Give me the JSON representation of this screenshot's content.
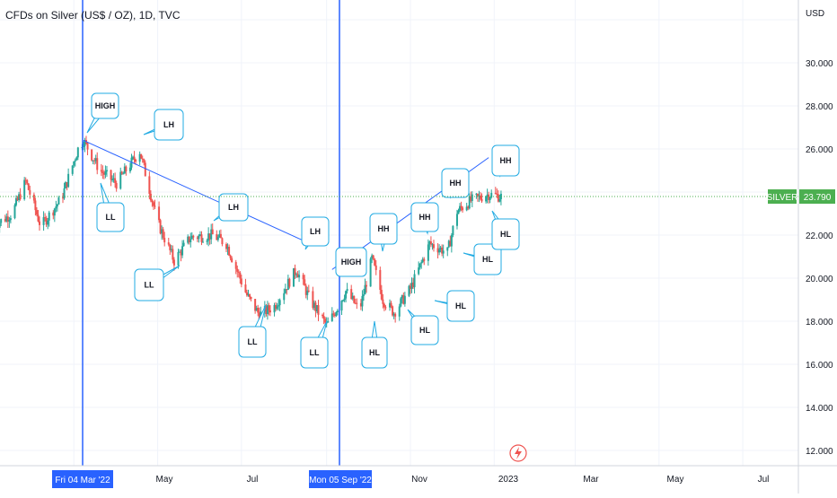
{
  "header": {
    "title": "CFDs on Silver (US$ / OZ), 1D, TVC"
  },
  "price_axis": {
    "unit": "USD",
    "ticks": [
      "30.000",
      "28.000",
      "26.000",
      "24.000",
      "22.000",
      "20.000",
      "18.000",
      "16.000",
      "14.000",
      "12.000"
    ]
  },
  "time_axis": {
    "ticks": [
      "May",
      "Jul",
      "Nov",
      "2023",
      "Mar",
      "May",
      "Jul"
    ]
  },
  "vertical_markers": [
    {
      "label": "Fri 04 Mar '22"
    },
    {
      "label": "Mon 05 Sep '22"
    }
  ],
  "current_price": {
    "symbol": "SILVER",
    "value": "23.790"
  },
  "colors": {
    "up": "#26a69a",
    "down": "#ef5350",
    "blue": "#2962ff",
    "annotation": "#22abe3",
    "price_tag": "#4caf50"
  },
  "chart_data": {
    "type": "candlestick",
    "title": "CFDs on Silver (US$ / OZ), 1D, TVC",
    "ylabel": "USD",
    "ylim": [
      11,
      32
    ],
    "x_range": [
      "2022-01-01",
      "2023-07-31"
    ],
    "series": [
      {
        "name": "SILVER",
        "points": [
          [
            "2022-01-01",
            22.4
          ],
          [
            "2022-01-15",
            23.0
          ],
          [
            "2022-01-25",
            24.5
          ],
          [
            "2022-02-05",
            22.4
          ],
          [
            "2022-02-20",
            23.7
          ],
          [
            "2022-03-04",
            26.0
          ],
          [
            "2022-03-08",
            26.4
          ],
          [
            "2022-03-20",
            25.0
          ],
          [
            "2022-04-01",
            24.4
          ],
          [
            "2022-04-18",
            25.9
          ],
          [
            "2022-05-01",
            22.6
          ],
          [
            "2022-05-13",
            20.8
          ],
          [
            "2022-05-25",
            21.9
          ],
          [
            "2022-06-10",
            22.0
          ],
          [
            "2022-06-20",
            21.6
          ],
          [
            "2022-07-05",
            19.2
          ],
          [
            "2022-07-14",
            18.3
          ],
          [
            "2022-07-25",
            18.7
          ],
          [
            "2022-08-10",
            20.4
          ],
          [
            "2022-08-20",
            19.0
          ],
          [
            "2022-09-01",
            17.8
          ],
          [
            "2022-09-05",
            18.2
          ],
          [
            "2022-09-15",
            19.4
          ],
          [
            "2022-09-25",
            18.5
          ],
          [
            "2022-10-04",
            20.9
          ],
          [
            "2022-10-12",
            19.0
          ],
          [
            "2022-10-20",
            18.4
          ],
          [
            "2022-11-01",
            19.5
          ],
          [
            "2022-11-15",
            21.6
          ],
          [
            "2022-11-28",
            21.2
          ],
          [
            "2022-12-05",
            23.1
          ],
          [
            "2022-12-15",
            23.6
          ],
          [
            "2022-12-28",
            23.9
          ],
          [
            "2023-01-06",
            23.79
          ]
        ]
      }
    ],
    "annotations": [
      "HIGH",
      "LH",
      "LL",
      "LH",
      "LL",
      "LH",
      "LL",
      "LL",
      "HIGH",
      "HH",
      "HL",
      "HH",
      "HL",
      "HH",
      "HL",
      "HH",
      "HL",
      "HL"
    ],
    "trendlines": [
      {
        "from": [
          "2022-03-08",
          26.4
        ],
        "to": [
          "2022-08-20",
          21.6
        ]
      },
      {
        "from": [
          "2022-09-05",
          20.4
        ],
        "to": [
          "2022-12-28",
          25.6
        ]
      }
    ]
  }
}
